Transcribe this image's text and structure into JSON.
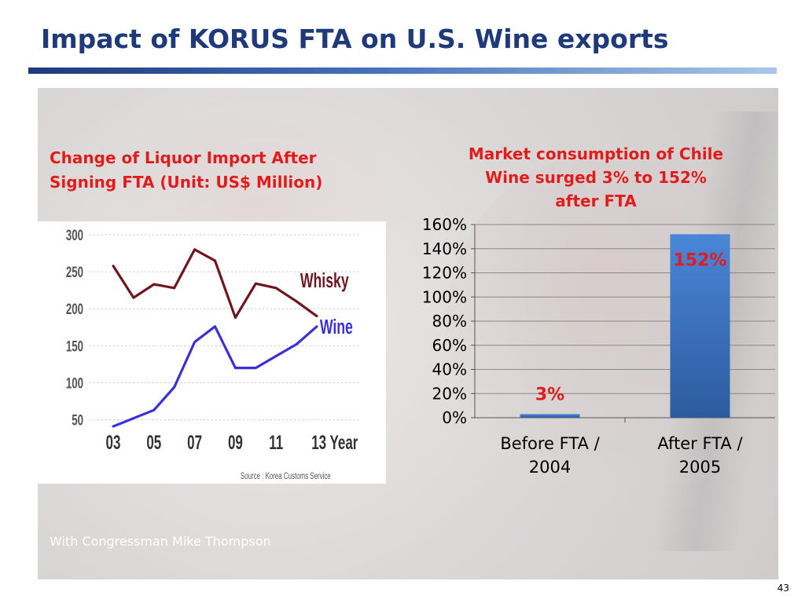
{
  "slide": {
    "title": "Impact of KORUS FTA on U.S. Wine exports",
    "footer": "With Congressman Mike Thompson",
    "page_number": "43",
    "colors": {
      "title": "#1f3a7a",
      "headline": "#e21c1c",
      "bar": "#3a73c4",
      "whisky_line": "#6e1720",
      "wine_line": "#3a2fd8"
    }
  },
  "left_panel": {
    "heading_line1": "Change of Liquor Import After",
    "heading_line2": "Signing FTA (Unit: US$ Million)"
  },
  "right_panel": {
    "heading_line1": "Market consumption of Chile",
    "heading_line2": "Wine surged 3% to 152%",
    "heading_line3": "after FTA"
  },
  "chart_data": [
    {
      "type": "line",
      "x": [
        2003,
        2004,
        2005,
        2006,
        2007,
        2008,
        2009,
        2010,
        2011,
        2012,
        2013
      ],
      "x_tick_labels": [
        "03",
        "05",
        "07",
        "09",
        "11",
        "13 Year"
      ],
      "y_tick_labels": [
        "300",
        "250",
        "200",
        "150",
        "100",
        "50"
      ],
      "ylim": [
        40,
        300
      ],
      "series": [
        {
          "name": "Whisky",
          "values": [
            258,
            215,
            233,
            228,
            280,
            265,
            188,
            234,
            228,
            210,
            190
          ]
        },
        {
          "name": "Wine",
          "values": [
            41,
            52,
            63,
            94,
            155,
            176,
            120,
            120,
            136,
            152,
            176
          ]
        }
      ],
      "source": "Source : Korea Customs Service"
    },
    {
      "type": "bar",
      "categories": [
        "Before FTA / 2004",
        "After FTA / 2005"
      ],
      "category_lines": [
        [
          "Before FTA /",
          "2004"
        ],
        [
          "After FTA /",
          "2005"
        ]
      ],
      "values": [
        3,
        152
      ],
      "data_labels": [
        "3%",
        "152%"
      ],
      "ylim": [
        0,
        160
      ],
      "y_ticks": [
        0,
        20,
        40,
        60,
        80,
        100,
        120,
        140,
        160
      ],
      "y_tick_labels": [
        "0%",
        "20%",
        "40%",
        "60%",
        "80%",
        "100%",
        "120%",
        "140%",
        "160%"
      ],
      "grid": true
    }
  ]
}
